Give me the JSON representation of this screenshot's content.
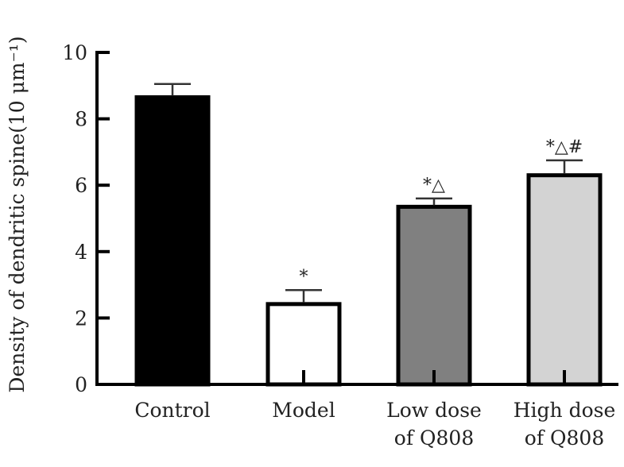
{
  "chart_data": {
    "type": "bar",
    "categories": [
      [
        "Control"
      ],
      [
        "Model"
      ],
      [
        "Low dose",
        "of Q808"
      ],
      [
        "High dose",
        "of Q808"
      ]
    ],
    "values": [
      8.65,
      2.42,
      5.35,
      6.3
    ],
    "errors": [
      0.4,
      0.42,
      0.25,
      0.45
    ],
    "significance": [
      "",
      "*",
      "*△",
      "*△#"
    ],
    "bar_colors": [
      "#000000",
      "#ffffff",
      "#808080",
      "#d3d3d3"
    ],
    "edge_color": "#000000",
    "ylabel": "Density of dendritic spine(10 μm⁻¹)",
    "ylim": [
      0,
      10
    ],
    "yticks": [
      "0",
      "2",
      "4",
      "6",
      "8",
      "10"
    ],
    "xlabel": "",
    "title": "",
    "grid": false
  }
}
